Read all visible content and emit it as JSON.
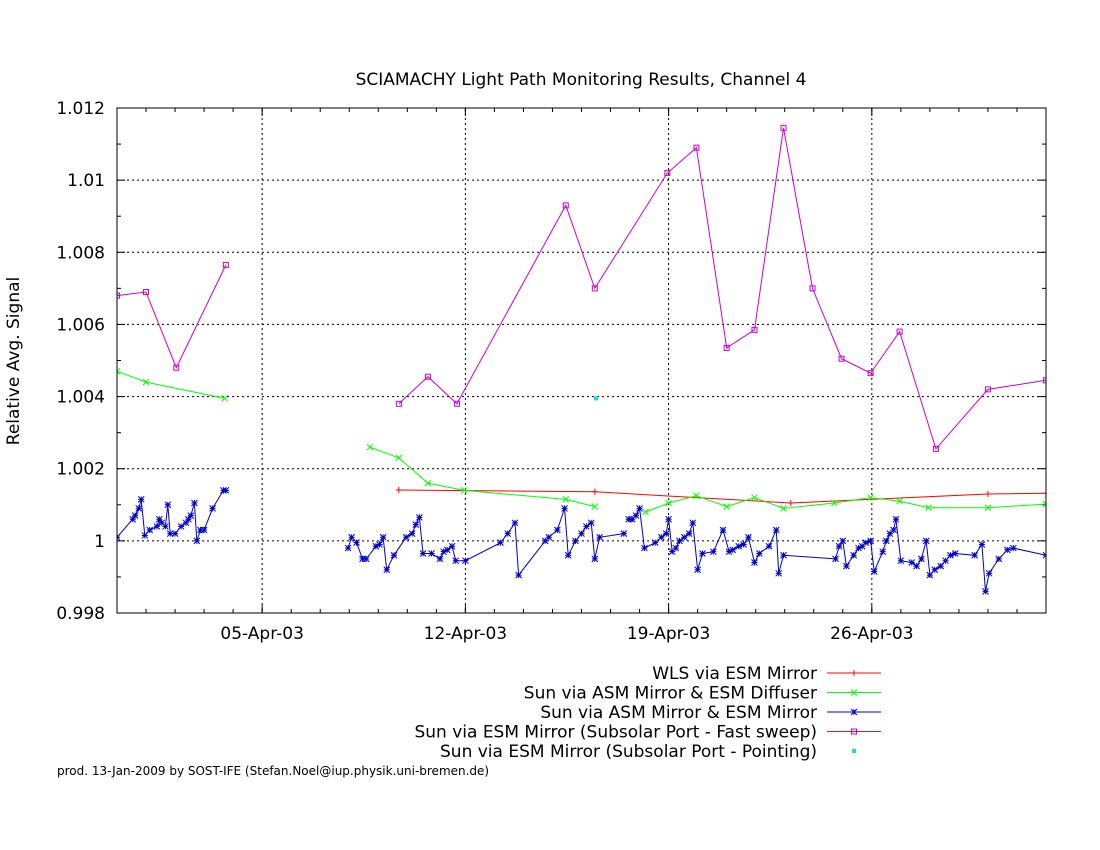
{
  "chart_data": {
    "type": "line",
    "title": "SCIAMACHY Light Path Monitoring Results, Channel 4",
    "xlabel": "",
    "ylabel": "Relative Avg. Signal",
    "xlim": [
      "2003-03-31T00:00",
      "2003-05-02T00:00"
    ],
    "ylim": [
      0.998,
      1.012
    ],
    "y_ticks": [
      0.998,
      1,
      1.002,
      1.004,
      1.006,
      1.008,
      1.01,
      1.012
    ],
    "y_tick_labels": [
      "0.998",
      "1",
      "1.002",
      "1.004",
      "1.006",
      "1.008",
      "1.01",
      "1.012"
    ],
    "x_ticks": [
      "2003-04-05",
      "2003-04-12",
      "2003-04-19",
      "2003-04-26"
    ],
    "x_tick_labels": [
      "05-Apr-03",
      "12-Apr-03",
      "19-Apr-03",
      "26-Apr-03"
    ],
    "grid": true,
    "legend_position": "bottom-right",
    "series": [
      {
        "name": "WLS via ESM Mirror",
        "color": "#ff0000",
        "marker": "plus",
        "line": true,
        "points": [
          [
            "2003-04-09T17:00",
            1.00141
          ],
          [
            "2003-04-16T11:00",
            1.00136
          ],
          [
            "2003-04-23T05:00",
            1.00105
          ],
          [
            "2003-04-30T00:00",
            1.0013
          ],
          [
            "2003-05-02T00:00",
            1.00132
          ]
        ]
      },
      {
        "name": "Sun via ASM Mirror & ESM Diffuser",
        "color": "#00ff00",
        "marker": "x",
        "line": true,
        "points": [
          [
            "2003-03-31T00:00",
            1.0047
          ],
          [
            "2003-04-01T00:00",
            1.0044
          ],
          [
            "2003-04-03T17:00",
            1.00395
          ],
          null,
          [
            "2003-04-08T17:00",
            1.0026
          ],
          [
            "2003-04-09T17:00",
            1.0023
          ],
          [
            "2003-04-10T17:00",
            1.0016
          ],
          [
            "2003-04-11T23:00",
            1.0014
          ],
          [
            "2003-04-15T11:00",
            1.00115
          ],
          [
            "2003-04-16T11:00",
            1.00095
          ],
          null,
          [
            "2003-04-18T05:00",
            1.0008
          ],
          [
            "2003-04-19T00:00",
            1.00105
          ],
          [
            "2003-04-19T23:00",
            1.00125
          ],
          [
            "2003-04-21T00:00",
            1.00095
          ],
          [
            "2003-04-21T23:00",
            1.0012
          ],
          [
            "2003-04-22T23:00",
            1.0009
          ],
          [
            "2003-04-24T17:00",
            1.00105
          ],
          [
            "2003-04-25T23:00",
            1.0012
          ],
          [
            "2003-04-26T23:00",
            1.0011
          ],
          [
            "2003-04-27T23:00",
            1.00092
          ],
          [
            "2003-04-30T00:00",
            1.00092
          ],
          [
            "2003-05-02T00:00",
            1.00102
          ]
        ]
      },
      {
        "name": "Sun via ASM Mirror & ESM Mirror",
        "color": "#0000cc",
        "marker": "star",
        "line": true,
        "points": [
          [
            "2003-03-31T00:00",
            1.0001
          ],
          [
            "2003-03-31T13:00",
            1.0006
          ],
          [
            "2003-03-31T15:00",
            1.0007
          ],
          [
            "2003-03-31T18:00",
            1.0009
          ],
          [
            "2003-03-31T20:00",
            1.00115
          ],
          [
            "2003-03-31T23:00",
            1.00015
          ],
          [
            "2003-04-01T03:00",
            1.0003
          ],
          [
            "2003-04-01T09:00",
            1.0004
          ],
          [
            "2003-04-01T11:00",
            1.0006
          ],
          [
            "2003-04-01T13:00",
            1.0005
          ],
          [
            "2003-04-01T16:00",
            1.0004
          ],
          [
            "2003-04-01T18:00",
            1.001
          ],
          [
            "2003-04-01T20:00",
            1.0002
          ],
          [
            "2003-04-02T00:00",
            1.0002
          ],
          [
            "2003-04-02T05:00",
            1.0004
          ],
          [
            "2003-04-02T09:00",
            1.0005
          ],
          [
            "2003-04-02T11:00",
            1.0006
          ],
          [
            "2003-04-02T13:00",
            1.0007
          ],
          [
            "2003-04-02T16:00",
            1.00105
          ],
          [
            "2003-04-02T18:00",
            1.0
          ],
          [
            "2003-04-02T21:00",
            1.0003
          ],
          [
            "2003-04-03T00:00",
            1.0003
          ],
          [
            "2003-04-03T07:00",
            1.0009
          ],
          [
            "2003-04-03T16:00",
            1.0014
          ],
          [
            "2003-04-03T18:00",
            1.0014
          ],
          null,
          [
            "2003-04-07T23:00",
            0.9998
          ],
          [
            "2003-04-08T02:00",
            1.0001
          ],
          [
            "2003-04-08T06:00",
            0.99995
          ],
          [
            "2003-04-08T11:00",
            0.9995
          ],
          [
            "2003-04-08T14:00",
            0.9995
          ],
          [
            "2003-04-08T22:00",
            0.99985
          ],
          [
            "2003-04-09T01:00",
            0.9999
          ],
          [
            "2003-04-09T04:00",
            1.0001
          ],
          [
            "2003-04-09T07:00",
            0.9992
          ],
          [
            "2003-04-09T13:00",
            0.9996
          ],
          [
            "2003-04-09T23:00",
            1.0001
          ],
          [
            "2003-04-10T04:00",
            1.0002
          ],
          [
            "2003-04-10T07:00",
            1.00045
          ],
          [
            "2003-04-10T10:00",
            1.00065
          ],
          [
            "2003-04-10T13:00",
            0.99965
          ],
          [
            "2003-04-10T20:00",
            0.99965
          ],
          [
            "2003-04-11T03:00",
            0.9995
          ],
          [
            "2003-04-11T06:00",
            0.9997
          ],
          [
            "2003-04-11T09:00",
            0.99975
          ],
          [
            "2003-04-11T13:00",
            0.99985
          ],
          [
            "2003-04-11T16:00",
            0.99945
          ],
          [
            "2003-04-12T00:00",
            0.99945
          ],
          [
            "2003-04-13T05:00",
            0.99995
          ],
          [
            "2003-04-13T11:00",
            1.0002
          ],
          [
            "2003-04-13T17:00",
            1.0005
          ],
          [
            "2003-04-13T20:00",
            0.99905
          ],
          [
            "2003-04-14T18:00",
            1.0
          ],
          [
            "2003-04-14T21:00",
            1.0001
          ],
          [
            "2003-04-15T04:00",
            1.0003
          ],
          [
            "2003-04-15T10:00",
            1.0009
          ],
          [
            "2003-04-15T13:00",
            0.9996
          ],
          [
            "2003-04-15T19:00",
            1.0
          ],
          [
            "2003-04-16T00:00",
            1.0002
          ],
          [
            "2003-04-16T04:00",
            1.0004
          ],
          [
            "2003-04-16T08:00",
            1.0005
          ],
          [
            "2003-04-16T11:00",
            0.9995
          ],
          [
            "2003-04-16T15:00",
            1.0001
          ],
          [
            "2003-04-17T11:00",
            1.0002
          ],
          null,
          [
            "2003-04-17T15:00",
            1.0006
          ],
          [
            "2003-04-17T18:00",
            1.0006
          ],
          [
            "2003-04-17T21:00",
            1.0007
          ],
          [
            "2003-04-18T00:00",
            1.0009
          ],
          [
            "2003-04-18T04:00",
            0.9998
          ],
          [
            "2003-04-18T13:00",
            0.99995
          ],
          [
            "2003-04-18T18:00",
            1.0001
          ],
          [
            "2003-04-18T22:00",
            1.0002
          ],
          [
            "2003-04-19T00:00",
            1.0006
          ],
          [
            "2003-04-19T03:00",
            0.9997
          ],
          [
            "2003-04-19T06:00",
            0.9998
          ],
          [
            "2003-04-19T09:00",
            1.0
          ],
          [
            "2003-04-19T13:00",
            1.0001
          ],
          [
            "2003-04-19T17:00",
            1.0002
          ],
          [
            "2003-04-19T20:00",
            1.0005
          ],
          [
            "2003-04-20T00:00",
            0.9992
          ],
          [
            "2003-04-20T04:00",
            0.99965
          ],
          [
            "2003-04-20T13:00",
            0.9997
          ],
          [
            "2003-04-20T21:00",
            1.0003
          ],
          [
            "2003-04-21T02:00",
            0.9997
          ],
          [
            "2003-04-21T05:00",
            0.99975
          ],
          [
            "2003-04-21T10:00",
            0.99985
          ],
          [
            "2003-04-21T14:00",
            0.9999
          ],
          [
            "2003-04-21T18:00",
            1.0001
          ],
          [
            "2003-04-21T23:00",
            0.9994
          ],
          [
            "2003-04-22T03:00",
            0.99965
          ],
          [
            "2003-04-22T11:00",
            0.99985
          ],
          [
            "2003-04-22T17:00",
            1.0003
          ],
          [
            "2003-04-22T19:00",
            0.9991
          ],
          [
            "2003-04-22T23:00",
            0.9996
          ],
          [
            "2003-04-24T18:00",
            0.9995
          ],
          [
            "2003-04-24T21:00",
            0.99985
          ],
          [
            "2003-04-25T00:00",
            1.0
          ],
          [
            "2003-04-25T03:00",
            0.9993
          ],
          [
            "2003-04-25T09:00",
            0.9996
          ],
          [
            "2003-04-25T13:00",
            0.9998
          ],
          [
            "2003-04-25T16:00",
            0.99985
          ],
          [
            "2003-04-25T19:00",
            0.99995
          ],
          [
            "2003-04-25T23:00",
            1.0
          ],
          [
            "2003-04-26T02:00",
            0.99915
          ],
          [
            "2003-04-26T09:00",
            0.9997
          ],
          [
            "2003-04-26T12:00",
            1.0
          ],
          [
            "2003-04-26T15:00",
            1.0002
          ],
          [
            "2003-04-26T18:00",
            1.0003
          ],
          [
            "2003-04-26T20:00",
            1.0006
          ],
          [
            "2003-04-27T00:00",
            0.99945
          ],
          [
            "2003-04-27T09:00",
            0.9994
          ],
          [
            "2003-04-27T13:00",
            0.9993
          ],
          [
            "2003-04-27T17:00",
            0.9995
          ],
          [
            "2003-04-27T21:00",
            1.0
          ],
          [
            "2003-04-28T00:00",
            0.99905
          ],
          [
            "2003-04-28T04:00",
            0.9992
          ],
          [
            "2003-04-28T09:00",
            0.9993
          ],
          [
            "2003-04-28T13:00",
            0.99945
          ],
          [
            "2003-04-28T17:00",
            0.9996
          ],
          [
            "2003-04-28T21:00",
            0.99965
          ],
          [
            "2003-04-29T13:00",
            0.9996
          ],
          [
            "2003-04-29T19:00",
            0.9999
          ],
          [
            "2003-04-29T22:00",
            0.9986
          ],
          [
            "2003-04-30T01:00",
            0.9991
          ],
          [
            "2003-04-30T09:00",
            0.9995
          ],
          [
            "2003-04-30T16:00",
            0.99975
          ],
          [
            "2003-04-30T21:00",
            0.9998
          ],
          [
            "2003-05-02T00:00",
            0.9996
          ]
        ]
      },
      {
        "name": "Sun via ESM Mirror (Subsolar Port - Fast sweep)",
        "color": "#cc00cc",
        "marker": "square",
        "line": true,
        "points": [
          [
            "2003-03-31T00:00",
            1.0068
          ],
          [
            "2003-04-01T00:00",
            1.0069
          ],
          [
            "2003-04-02T01:00",
            1.0048
          ],
          [
            "2003-04-03T18:00",
            1.00765
          ],
          null,
          [
            "2003-04-09T17:00",
            1.0038
          ],
          [
            "2003-04-10T17:00",
            1.00455
          ],
          [
            "2003-04-11T17:00",
            1.0038
          ],
          [
            "2003-04-15T11:00",
            1.0093
          ],
          [
            "2003-04-16T11:00",
            1.007
          ],
          [
            "2003-04-18T23:00",
            1.0102
          ],
          [
            "2003-04-19T23:00",
            1.0109
          ],
          [
            "2003-04-21T00:00",
            1.00535
          ],
          [
            "2003-04-21T23:00",
            1.00585
          ],
          [
            "2003-04-22T23:00",
            1.01145
          ],
          [
            "2003-04-23T23:00",
            1.007
          ],
          [
            "2003-04-24T23:00",
            1.00505
          ],
          [
            "2003-04-25T23:00",
            1.00465
          ],
          [
            "2003-04-26T23:00",
            1.0058
          ],
          [
            "2003-04-28T05:00",
            1.00255
          ],
          [
            "2003-04-30T00:00",
            1.0042
          ],
          [
            "2003-05-02T00:00",
            1.00445
          ]
        ]
      },
      {
        "name": "Sun via ESM Mirror (Subsolar Port - Pointing)",
        "color": "#00e5ee",
        "marker": "dot",
        "line": false,
        "points": [
          [
            "2003-04-16T12:00",
            1.00395
          ]
        ]
      }
    ]
  },
  "footer": {
    "text": "prod. 13-Jan-2009 by SOST-IFE (Stefan.Noel@iup.physik.uni-bremen.de)"
  }
}
